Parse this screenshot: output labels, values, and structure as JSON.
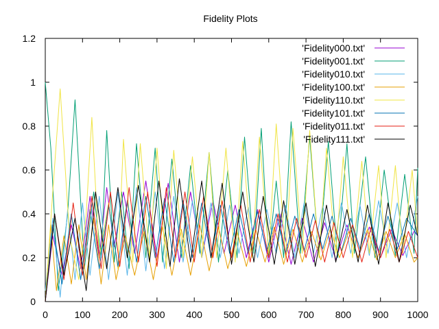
{
  "chart_data": {
    "type": "line",
    "title": "Fidelity Plots",
    "xlabel": "",
    "ylabel": "",
    "xlim": [
      0,
      1000
    ],
    "ylim": [
      0,
      1.2
    ],
    "x_ticks": [
      "0",
      "100",
      "200",
      "300",
      "400",
      "500",
      "600",
      "700",
      "800",
      "900",
      "1000"
    ],
    "y_ticks": [
      "0",
      "0.2",
      "0.4",
      "0.6",
      "0.8",
      "1",
      "1.2"
    ],
    "grid": false,
    "legend_position": "top-right",
    "series": [
      {
        "name": "'Fidelity000.txt'",
        "color": "#9400d3",
        "x": [
          0,
          20,
          45,
          70,
          95,
          120,
          145,
          165,
          185,
          210,
          240,
          270,
          300,
          330,
          360,
          390,
          420,
          450,
          480,
          510,
          540,
          570,
          600,
          630,
          660,
          690,
          720,
          750,
          780,
          810,
          840,
          870,
          900,
          930,
          960,
          990,
          1000
        ],
        "y": [
          0.0,
          0.3,
          0.12,
          0.35,
          0.15,
          0.48,
          0.2,
          0.52,
          0.25,
          0.5,
          0.22,
          0.55,
          0.2,
          0.54,
          0.18,
          0.5,
          0.2,
          0.46,
          0.22,
          0.44,
          0.2,
          0.42,
          0.18,
          0.4,
          0.17,
          0.38,
          0.18,
          0.36,
          0.19,
          0.35,
          0.2,
          0.34,
          0.2,
          0.33,
          0.21,
          0.32,
          0.3
        ]
      },
      {
        "name": "'Fidelity001.txt'",
        "color": "#009e73",
        "x": [
          0,
          15,
          35,
          60,
          80,
          105,
          130,
          150,
          165,
          185,
          205,
          225,
          245,
          270,
          295,
          315,
          340,
          365,
          390,
          415,
          440,
          465,
          490,
          515,
          535,
          560,
          580,
          600,
          620,
          640,
          660,
          685,
          710,
          735,
          760,
          785,
          810,
          830,
          860,
          885,
          910,
          940,
          965,
          990,
          1000
        ],
        "y": [
          1.0,
          0.7,
          0.05,
          0.4,
          0.92,
          0.15,
          0.5,
          0.2,
          0.78,
          0.18,
          0.5,
          0.15,
          0.72,
          0.2,
          0.7,
          0.18,
          0.65,
          0.2,
          0.62,
          0.22,
          0.68,
          0.18,
          0.6,
          0.2,
          0.75,
          0.22,
          0.79,
          0.2,
          0.55,
          0.2,
          0.82,
          0.22,
          0.75,
          0.2,
          0.73,
          0.2,
          0.72,
          0.22,
          0.66,
          0.2,
          0.6,
          0.21,
          0.58,
          0.22,
          0.61
        ]
      },
      {
        "name": "'Fidelity010.txt'",
        "color": "#56b4e9",
        "x": [
          0,
          20,
          40,
          60,
          80,
          100,
          120,
          145,
          170,
          195,
          220,
          245,
          270,
          295,
          320,
          345,
          370,
          395,
          420,
          445,
          470,
          495,
          520,
          545,
          570,
          595,
          620,
          645,
          670,
          695,
          720,
          745,
          770,
          795,
          820,
          845,
          870,
          895,
          920,
          945,
          970,
          1000
        ],
        "y": [
          0.05,
          0.38,
          0.02,
          0.42,
          0.1,
          0.45,
          0.12,
          0.48,
          0.1,
          0.5,
          0.12,
          0.52,
          0.14,
          0.5,
          0.15,
          0.48,
          0.18,
          0.46,
          0.2,
          0.45,
          0.2,
          0.44,
          0.22,
          0.43,
          0.2,
          0.42,
          0.22,
          0.44,
          0.2,
          0.45,
          0.22,
          0.44,
          0.2,
          0.45,
          0.22,
          0.44,
          0.21,
          0.46,
          0.22,
          0.45,
          0.2,
          0.48
        ]
      },
      {
        "name": "'Fidelity100.txt'",
        "color": "#e69f00",
        "x": [
          0,
          15,
          30,
          50,
          70,
          90,
          110,
          130,
          150,
          170,
          190,
          215,
          240,
          265,
          290,
          315,
          340,
          365,
          390,
          415,
          440,
          465,
          490,
          515,
          540,
          565,
          590,
          615,
          640,
          665,
          690,
          715,
          740,
          765,
          790,
          815,
          840,
          865,
          890,
          915,
          940,
          965,
          990,
          1000
        ],
        "y": [
          0.0,
          0.35,
          0.05,
          0.3,
          0.08,
          0.35,
          0.1,
          0.38,
          0.08,
          0.35,
          0.1,
          0.3,
          0.12,
          0.32,
          0.1,
          0.34,
          0.12,
          0.33,
          0.12,
          0.35,
          0.14,
          0.34,
          0.15,
          0.32,
          0.16,
          0.33,
          0.18,
          0.34,
          0.17,
          0.33,
          0.18,
          0.32,
          0.19,
          0.33,
          0.2,
          0.32,
          0.2,
          0.33,
          0.19,
          0.32,
          0.2,
          0.31,
          0.18,
          0.2
        ]
      },
      {
        "name": "'Fidelity110.txt'",
        "color": "#f0e442",
        "x": [
          0,
          20,
          40,
          65,
          90,
          110,
          125,
          145,
          170,
          195,
          210,
          235,
          255,
          280,
          300,
          325,
          345,
          370,
          395,
          420,
          440,
          460,
          485,
          510,
          530,
          555,
          575,
          600,
          620,
          645,
          665,
          690,
          710,
          735,
          755,
          780,
          800,
          825,
          850,
          870,
          895,
          915,
          940,
          960,
          985,
          1000
        ],
        "y": [
          0.0,
          0.5,
          0.97,
          0.3,
          0.1,
          0.4,
          0.84,
          0.2,
          0.45,
          0.15,
          0.74,
          0.18,
          0.72,
          0.2,
          0.7,
          0.15,
          0.69,
          0.2,
          0.66,
          0.2,
          0.68,
          0.2,
          0.7,
          0.18,
          0.73,
          0.2,
          0.75,
          0.22,
          0.81,
          0.2,
          0.79,
          0.22,
          0.78,
          0.2,
          0.7,
          0.22,
          0.66,
          0.2,
          0.64,
          0.22,
          0.62,
          0.2,
          0.62,
          0.22,
          0.6,
          0.3
        ]
      },
      {
        "name": "'Fidelity101.txt'",
        "color": "#0072b2",
        "x": [
          0,
          20,
          45,
          70,
          95,
          120,
          145,
          170,
          195,
          220,
          245,
          270,
          295,
          320,
          345,
          370,
          395,
          420,
          445,
          470,
          495,
          520,
          545,
          570,
          595,
          620,
          645,
          670,
          695,
          720,
          745,
          770,
          795,
          820,
          845,
          870,
          895,
          920,
          945,
          970,
          1000
        ],
        "y": [
          0.0,
          0.35,
          0.08,
          0.4,
          0.1,
          0.42,
          0.15,
          0.44,
          0.16,
          0.46,
          0.18,
          0.48,
          0.2,
          0.47,
          0.18,
          0.46,
          0.2,
          0.45,
          0.2,
          0.44,
          0.22,
          0.42,
          0.22,
          0.41,
          0.23,
          0.4,
          0.22,
          0.39,
          0.23,
          0.4,
          0.24,
          0.39,
          0.23,
          0.38,
          0.24,
          0.4,
          0.23,
          0.39,
          0.24,
          0.38,
          0.3
        ]
      },
      {
        "name": "'Fidelity011.txt'",
        "color": "#e51e10",
        "x": [
          0,
          25,
          50,
          75,
          100,
          125,
          150,
          175,
          200,
          225,
          250,
          275,
          300,
          325,
          350,
          375,
          400,
          425,
          450,
          475,
          500,
          525,
          550,
          575,
          600,
          625,
          650,
          675,
          700,
          725,
          750,
          775,
          800,
          825,
          850,
          875,
          900,
          925,
          950,
          975,
          1000
        ],
        "y": [
          0.0,
          0.4,
          0.1,
          0.45,
          0.12,
          0.48,
          0.15,
          0.5,
          0.16,
          0.52,
          0.18,
          0.5,
          0.16,
          0.52,
          0.2,
          0.5,
          0.18,
          0.48,
          0.2,
          0.46,
          0.2,
          0.44,
          0.18,
          0.42,
          0.2,
          0.4,
          0.18,
          0.38,
          0.2,
          0.37,
          0.18,
          0.36,
          0.2,
          0.35,
          0.18,
          0.34,
          0.2,
          0.33,
          0.18,
          0.32,
          0.2
        ]
      },
      {
        "name": "'Fidelity111.txt'",
        "color": "#000000",
        "x": [
          0,
          25,
          50,
          80,
          110,
          135,
          165,
          195,
          220,
          250,
          280,
          305,
          335,
          360,
          390,
          420,
          445,
          475,
          500,
          530,
          560,
          585,
          615,
          640,
          670,
          700,
          725,
          755,
          780,
          810,
          840,
          865,
          895,
          920,
          950,
          980,
          1000
        ],
        "y": [
          0.0,
          0.4,
          0.12,
          0.38,
          0.05,
          0.5,
          0.15,
          0.52,
          0.2,
          0.53,
          0.18,
          0.55,
          0.16,
          0.56,
          0.18,
          0.55,
          0.2,
          0.54,
          0.17,
          0.5,
          0.18,
          0.48,
          0.17,
          0.46,
          0.17,
          0.45,
          0.16,
          0.44,
          0.18,
          0.42,
          0.18,
          0.44,
          0.17,
          0.45,
          0.18,
          0.44,
          0.3
        ]
      }
    ]
  }
}
